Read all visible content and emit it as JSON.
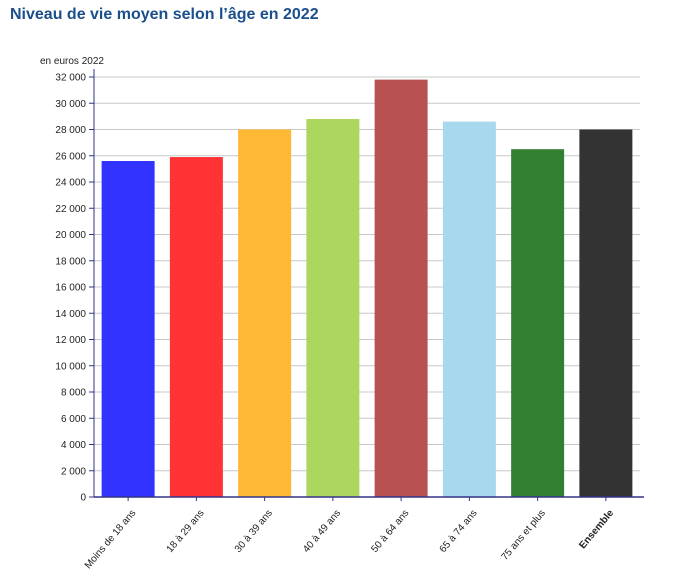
{
  "page": {
    "title": "Niveau de vie moyen selon l’âge en 2022"
  },
  "chart_data": {
    "type": "bar",
    "title": "Niveau de vie moyen selon l’âge en 2022",
    "unit_label": "en euros 2022",
    "xlabel": "",
    "ylabel": "",
    "ylim": [
      0,
      32000
    ],
    "ytick_step": 2000,
    "yticks": [
      "0",
      "2 000",
      "4 000",
      "6 000",
      "8 000",
      "10 000",
      "12 000",
      "14 000",
      "16 000",
      "18 000",
      "20 000",
      "22 000",
      "24 000",
      "26 000",
      "28 000",
      "30 000",
      "32 000"
    ],
    "grid": true,
    "legend": "none",
    "categories": [
      "Moins de 18 ans",
      "18 à 29 ans",
      "30 à 39 ans",
      "40 à 49 ans",
      "50 à 64 ans",
      "65 à 74 ans",
      "75 ans et plus",
      "Ensemble"
    ],
    "bold_categories": [
      "Ensemble"
    ],
    "values": [
      25600,
      25900,
      28000,
      28800,
      31800,
      28600,
      26500,
      28000
    ],
    "colors": [
      "#3333ff",
      "#ff3333",
      "#ffb833",
      "#acd65e",
      "#b85250",
      "#a8d8ee",
      "#338033",
      "#333333"
    ],
    "axis_color": "#33338a",
    "grid_color": "#c8c8c8"
  }
}
